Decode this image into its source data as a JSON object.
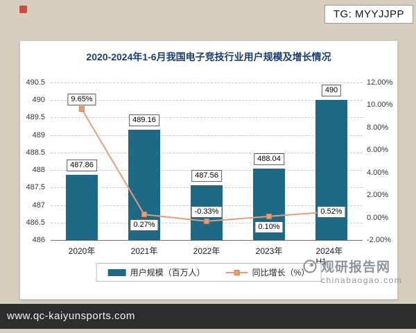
{
  "page": {
    "tg_label": "TG: MYYJJPP",
    "footer_url": "www.qc-kaiyunsports.com",
    "watermark": {
      "name": "观研报告网",
      "site": "chinabaogao.com"
    }
  },
  "chart_data": {
    "type": "bar+line",
    "title": "2020-2024年1-6月我国电子竞技行业用户规模及增长情况",
    "categories": [
      "2020年",
      "2021年",
      "2022年",
      "2023年",
      "2024年H1"
    ],
    "series": [
      {
        "name": "用户规模（百万人）",
        "type": "bar",
        "axis": "left",
        "color": "#1d6a87",
        "values": [
          487.86,
          489.16,
          487.56,
          488.04,
          490
        ],
        "labels": [
          "487.86",
          "489.16",
          "487.56",
          "488.04",
          "490"
        ]
      },
      {
        "name": "同比增长（%）",
        "type": "line",
        "axis": "right",
        "color": "#eb9c74",
        "values": [
          9.65,
          0.27,
          -0.33,
          0.1,
          0.52
        ],
        "labels": [
          "9.65%",
          "0.27%",
          "-0.33%",
          "0.10%",
          "0.52%"
        ],
        "label_positions": [
          "above",
          "below",
          "above",
          "below",
          "center"
        ]
      }
    ],
    "left_axis": {
      "min": 486,
      "max": 490.5,
      "step": 0.5
    },
    "right_axis": {
      "min": -2,
      "max": 12,
      "step": 2,
      "format": "percent2"
    },
    "grid": "dashed",
    "legend_position": "bottom"
  }
}
